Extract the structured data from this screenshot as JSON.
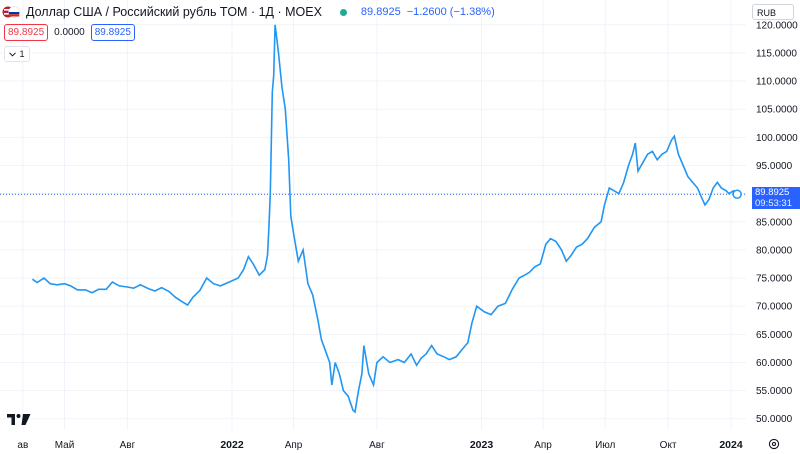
{
  "header": {
    "title": "Доллар США / Российский рубль TOM · 1Д · MOEX",
    "last_price": "89.8925",
    "change": "−1.2600 (−1.38%)",
    "currency": "RUB"
  },
  "ohlc_row": {
    "sell": "89.8925",
    "spread": "0.0000",
    "buy": "89.8925"
  },
  "collapse_label": "1",
  "price_tag": {
    "price": "89.8925",
    "time": "09:53:31"
  },
  "colors": {
    "line": "#2196f3",
    "accent": "#2962ff",
    "up": "#22ab94",
    "down": "#f23645"
  },
  "chart_data": {
    "type": "line",
    "title": "Доллар США / Российский рубль TOM · 1Д · MOEX",
    "xlabel": "",
    "ylabel": "",
    "ylim": [
      48.0,
      124.4
    ],
    "y_ticks": [
      "50.0000",
      "55.0000",
      "60.0000",
      "65.0000",
      "70.0000",
      "75.0000",
      "80.0000",
      "85.0000",
      "90.0000",
      "95.0000",
      "100.0000",
      "105.0000",
      "110.0000",
      "115.0000",
      "120.0000"
    ],
    "x_ticks": [
      "ав",
      "Май",
      "Авг",
      "2022",
      "Апр",
      "Авг",
      "2023",
      "Апр",
      "Июл",
      "Окт",
      "2024"
    ],
    "grid": true,
    "series": [
      {
        "points": [
          [
            "2021-03-15",
            74.8
          ],
          [
            "2021-03-22",
            74.2
          ],
          [
            "2021-04-01",
            75.0
          ],
          [
            "2021-04-10",
            74.0
          ],
          [
            "2021-04-20",
            73.8
          ],
          [
            "2021-05-01",
            74.0
          ],
          [
            "2021-05-10",
            73.6
          ],
          [
            "2021-05-20",
            72.9
          ],
          [
            "2021-06-01",
            72.9
          ],
          [
            "2021-06-10",
            72.4
          ],
          [
            "2021-06-20",
            73.0
          ],
          [
            "2021-07-01",
            73.0
          ],
          [
            "2021-07-10",
            74.3
          ],
          [
            "2021-07-20",
            73.6
          ],
          [
            "2021-08-01",
            73.4
          ],
          [
            "2021-08-10",
            73.2
          ],
          [
            "2021-08-20",
            73.8
          ],
          [
            "2021-09-01",
            73.1
          ],
          [
            "2021-09-10",
            72.7
          ],
          [
            "2021-09-20",
            73.3
          ],
          [
            "2021-10-01",
            72.6
          ],
          [
            "2021-10-10",
            71.6
          ],
          [
            "2021-10-20",
            70.8
          ],
          [
            "2021-10-28",
            70.2
          ],
          [
            "2021-11-05",
            71.6
          ],
          [
            "2021-11-15",
            72.8
          ],
          [
            "2021-11-25",
            75.0
          ],
          [
            "2021-12-05",
            74.0
          ],
          [
            "2021-12-15",
            73.6
          ],
          [
            "2021-12-28",
            74.3
          ],
          [
            "2022-01-10",
            75.0
          ],
          [
            "2022-01-18",
            76.5
          ],
          [
            "2022-01-25",
            78.8
          ],
          [
            "2022-02-01",
            77.5
          ],
          [
            "2022-02-10",
            75.5
          ],
          [
            "2022-02-18",
            76.5
          ],
          [
            "2022-02-22",
            79.0
          ],
          [
            "2022-02-24",
            84.0
          ],
          [
            "2022-02-26",
            90.0
          ],
          [
            "2022-03-01",
            108.0
          ],
          [
            "2022-03-03",
            111.0
          ],
          [
            "2022-03-05",
            120.0
          ],
          [
            "2022-03-10",
            115.0
          ],
          [
            "2022-03-15",
            109.0
          ],
          [
            "2022-03-20",
            105.0
          ],
          [
            "2022-03-25",
            96.0
          ],
          [
            "2022-03-28",
            86.0
          ],
          [
            "2022-04-01",
            83.0
          ],
          [
            "2022-04-08",
            78.0
          ],
          [
            "2022-04-15",
            80.0
          ],
          [
            "2022-04-22",
            74.0
          ],
          [
            "2022-04-29",
            72.0
          ],
          [
            "2022-05-06",
            68.0
          ],
          [
            "2022-05-12",
            64.0
          ],
          [
            "2022-05-18",
            62.0
          ],
          [
            "2022-05-24",
            60.0
          ],
          [
            "2022-05-27",
            56.0
          ],
          [
            "2022-06-01",
            60.0
          ],
          [
            "2022-06-07",
            58.0
          ],
          [
            "2022-06-13",
            55.0
          ],
          [
            "2022-06-20",
            54.0
          ],
          [
            "2022-06-27",
            51.5
          ],
          [
            "2022-06-30",
            51.2
          ],
          [
            "2022-07-05",
            55.0
          ],
          [
            "2022-07-10",
            58.0
          ],
          [
            "2022-07-13",
            63.0
          ],
          [
            "2022-07-20",
            58.0
          ],
          [
            "2022-07-27",
            56.0
          ],
          [
            "2022-08-01",
            60.0
          ],
          [
            "2022-08-10",
            61.0
          ],
          [
            "2022-08-20",
            60.0
          ],
          [
            "2022-09-01",
            60.5
          ],
          [
            "2022-09-10",
            60.0
          ],
          [
            "2022-09-20",
            61.5
          ],
          [
            "2022-09-28",
            59.5
          ],
          [
            "2022-10-05",
            60.8
          ],
          [
            "2022-10-12",
            61.5
          ],
          [
            "2022-10-20",
            63.0
          ],
          [
            "2022-10-28",
            61.5
          ],
          [
            "2022-11-07",
            61.0
          ],
          [
            "2022-11-15",
            60.5
          ],
          [
            "2022-11-25",
            61.0
          ],
          [
            "2022-12-05",
            62.5
          ],
          [
            "2022-12-12",
            63.5
          ],
          [
            "2022-12-18",
            67.0
          ],
          [
            "2022-12-25",
            70.0
          ],
          [
            "2023-01-05",
            69.0
          ],
          [
            "2023-01-15",
            68.5
          ],
          [
            "2023-01-25",
            70.0
          ],
          [
            "2023-02-05",
            70.5
          ],
          [
            "2023-02-15",
            73.0
          ],
          [
            "2023-02-25",
            75.0
          ],
          [
            "2023-03-05",
            75.5
          ],
          [
            "2023-03-12",
            76.0
          ],
          [
            "2023-03-20",
            77.0
          ],
          [
            "2023-03-28",
            77.5
          ],
          [
            "2023-04-05",
            81.0
          ],
          [
            "2023-04-12",
            82.0
          ],
          [
            "2023-04-20",
            81.5
          ],
          [
            "2023-04-28",
            80.0
          ],
          [
            "2023-05-05",
            78.0
          ],
          [
            "2023-05-12",
            79.0
          ],
          [
            "2023-05-20",
            80.5
          ],
          [
            "2023-05-28",
            81.0
          ],
          [
            "2023-06-05",
            82.0
          ],
          [
            "2023-06-15",
            84.0
          ],
          [
            "2023-06-25",
            85.0
          ],
          [
            "2023-06-30",
            88.0
          ],
          [
            "2023-07-07",
            91.0
          ],
          [
            "2023-07-14",
            90.5
          ],
          [
            "2023-07-21",
            90.0
          ],
          [
            "2023-07-28",
            92.0
          ],
          [
            "2023-08-04",
            95.0
          ],
          [
            "2023-08-10",
            97.0
          ],
          [
            "2023-08-14",
            99.0
          ],
          [
            "2023-08-18",
            94.0
          ],
          [
            "2023-08-25",
            95.5
          ],
          [
            "2023-09-01",
            97.0
          ],
          [
            "2023-09-08",
            97.5
          ],
          [
            "2023-09-15",
            96.0
          ],
          [
            "2023-09-22",
            97.0
          ],
          [
            "2023-09-29",
            97.5
          ],
          [
            "2023-10-06",
            99.5
          ],
          [
            "2023-10-10",
            100.2
          ],
          [
            "2023-10-16",
            97.0
          ],
          [
            "2023-10-23",
            95.0
          ],
          [
            "2023-10-30",
            93.0
          ],
          [
            "2023-11-06",
            92.0
          ],
          [
            "2023-11-13",
            91.0
          ],
          [
            "2023-11-20",
            89.0
          ],
          [
            "2023-11-24",
            88.0
          ],
          [
            "2023-11-30",
            89.0
          ],
          [
            "2023-12-06",
            91.0
          ],
          [
            "2023-12-12",
            92.0
          ],
          [
            "2023-12-18",
            91.0
          ],
          [
            "2023-12-25",
            90.5
          ],
          [
            "2023-12-29",
            90.0
          ],
          [
            "2024-01-05",
            90.5
          ],
          [
            "2024-01-10",
            89.8925
          ]
        ]
      }
    ],
    "last_value": 89.8925
  }
}
